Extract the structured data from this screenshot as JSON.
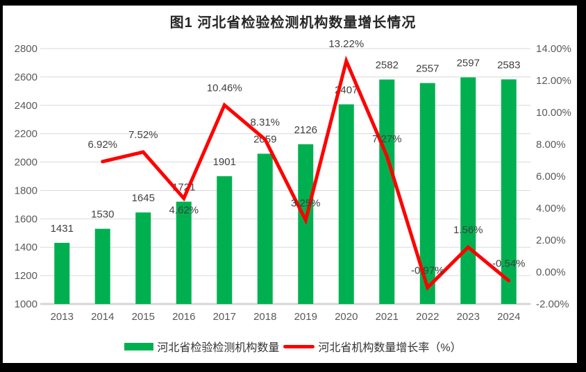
{
  "legend": {
    "items": [
      {
        "label": "河北省检验检测机构数量",
        "color": "#00B050",
        "swatch": "bar"
      },
      {
        "label": "河北省机构数量增长率（%）",
        "color": "#FF0000",
        "swatch": "line"
      }
    ]
  },
  "chart_data": {
    "type": "combo",
    "title": "图1  河北省检验检测机构数量增长情况",
    "categories": [
      "2013",
      "2014",
      "2015",
      "2016",
      "2017",
      "2018",
      "2019",
      "2020",
      "2021",
      "2022",
      "2023",
      "2024"
    ],
    "series": [
      {
        "name": "河北省检验检测机构数量",
        "type": "bar",
        "color": "#00B050",
        "values": [
          1431,
          1530,
          1645,
          1721,
          1901,
          2059,
          2126,
          2407,
          2582,
          2557,
          2597,
          2583
        ],
        "labels": [
          "1431",
          "1530",
          "1645",
          "1721",
          "1901",
          "2059",
          "2126",
          "2407",
          "2582",
          "2557",
          "2597",
          "2583"
        ]
      },
      {
        "name": "河北省机构数量增长率（%）",
        "type": "line",
        "color": "#FF0000",
        "values": [
          null,
          6.92,
          7.52,
          4.62,
          10.46,
          8.31,
          3.25,
          13.22,
          7.27,
          -0.97,
          1.56,
          -0.54
        ],
        "labels": [
          "",
          "6.92%",
          "7.52%",
          "4.62%",
          "10.46%",
          "8.31%",
          "3.25%",
          "13.22%",
          "7.27%",
          "-0.97%",
          "1.56%",
          "-0.54%"
        ]
      }
    ],
    "left_axis": {
      "min": 1000,
      "max": 2800,
      "tick_values": [
        2800,
        2600,
        2400,
        2200,
        2000,
        1800,
        1600,
        1400,
        1200,
        1000
      ],
      "ticks": [
        "2800",
        "2600",
        "2400",
        "2200",
        "2000",
        "1800",
        "1600",
        "1400",
        "1200",
        "1000"
      ]
    },
    "right_axis": {
      "min": -2,
      "max": 14,
      "tick_values": [
        14,
        12,
        10,
        8,
        6,
        4,
        2,
        0,
        -2
      ],
      "ticks": [
        "14.00%",
        "12.00%",
        "10.00%",
        "8.00%",
        "6.00%",
        "4.00%",
        "2.00%",
        "0.00%",
        "-2.00%"
      ]
    },
    "grid": true,
    "legend_position": "bottom",
    "colors": {
      "grid": "#D9D9D9",
      "axis_line": "#D6D6D6",
      "tick_text": "#595959",
      "data_label": "#404040"
    },
    "layout": {
      "line_label_dy": [
        0,
        -20,
        -20,
        22,
        -20,
        -20,
        -20,
        -20,
        -20,
        -20,
        -20,
        -20
      ],
      "bar_label_dy": -16
    }
  }
}
